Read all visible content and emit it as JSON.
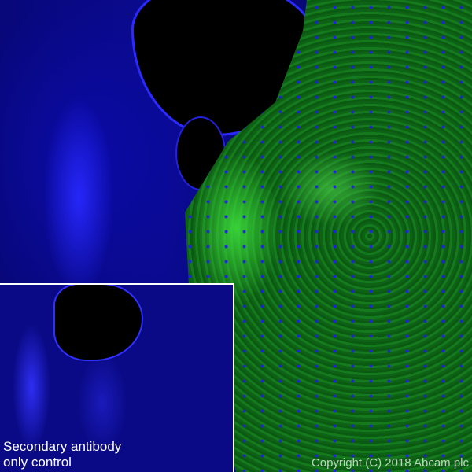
{
  "image": {
    "description_colors": {
      "nuclei": "#1a1aff",
      "stain": "#22a32a",
      "background": "#000000"
    }
  },
  "inset": {
    "caption": "Secondary antibody\nonly control"
  },
  "watermark": {
    "text": "Copyright (C) 2018 Abcam plc"
  }
}
